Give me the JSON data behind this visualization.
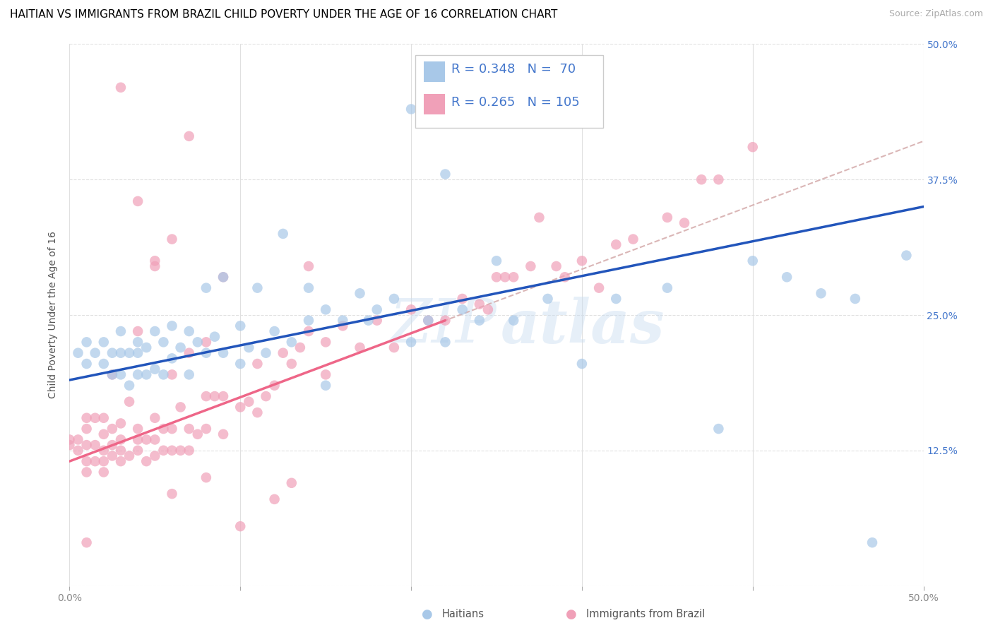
{
  "title": "HAITIAN VS IMMIGRANTS FROM BRAZIL CHILD POVERTY UNDER THE AGE OF 16 CORRELATION CHART",
  "source": "Source: ZipAtlas.com",
  "ylabel": "Child Poverty Under the Age of 16",
  "xlim": [
    0.0,
    0.5
  ],
  "ylim": [
    0.0,
    0.5
  ],
  "yticks": [
    0.0,
    0.125,
    0.25,
    0.375,
    0.5
  ],
  "xtick_positions": [
    0.0,
    0.1,
    0.2,
    0.3,
    0.4,
    0.5
  ],
  "color_blue": "#A8C8E8",
  "color_pink": "#F0A0B8",
  "color_blue_line": "#2255BB",
  "color_pink_line": "#EE6688",
  "color_dashed_line": "#D4AAAA",
  "color_right_ticks": "#4477CC",
  "color_grid": "#E0E0E0",
  "watermark": "ZIPatlas",
  "blue_scatter_x": [
    0.005,
    0.01,
    0.01,
    0.015,
    0.02,
    0.02,
    0.025,
    0.025,
    0.03,
    0.03,
    0.03,
    0.035,
    0.035,
    0.04,
    0.04,
    0.04,
    0.045,
    0.045,
    0.05,
    0.05,
    0.055,
    0.055,
    0.06,
    0.06,
    0.065,
    0.07,
    0.07,
    0.075,
    0.08,
    0.08,
    0.085,
    0.09,
    0.09,
    0.1,
    0.1,
    0.105,
    0.11,
    0.115,
    0.12,
    0.125,
    0.13,
    0.14,
    0.14,
    0.15,
    0.15,
    0.16,
    0.17,
    0.175,
    0.18,
    0.19,
    0.2,
    0.21,
    0.22,
    0.23,
    0.24,
    0.25,
    0.26,
    0.28,
    0.3,
    0.32,
    0.35,
    0.38,
    0.4,
    0.42,
    0.44,
    0.46,
    0.47,
    0.49,
    0.2,
    0.22
  ],
  "blue_scatter_y": [
    0.215,
    0.205,
    0.225,
    0.215,
    0.205,
    0.225,
    0.195,
    0.215,
    0.195,
    0.215,
    0.235,
    0.185,
    0.215,
    0.195,
    0.215,
    0.225,
    0.195,
    0.22,
    0.2,
    0.235,
    0.195,
    0.225,
    0.21,
    0.24,
    0.22,
    0.195,
    0.235,
    0.225,
    0.215,
    0.275,
    0.23,
    0.215,
    0.285,
    0.205,
    0.24,
    0.22,
    0.275,
    0.215,
    0.235,
    0.325,
    0.225,
    0.245,
    0.275,
    0.185,
    0.255,
    0.245,
    0.27,
    0.245,
    0.255,
    0.265,
    0.225,
    0.245,
    0.225,
    0.255,
    0.245,
    0.3,
    0.245,
    0.265,
    0.205,
    0.265,
    0.275,
    0.145,
    0.3,
    0.285,
    0.27,
    0.265,
    0.04,
    0.305,
    0.44,
    0.38
  ],
  "pink_scatter_x": [
    0.0,
    0.0,
    0.005,
    0.005,
    0.01,
    0.01,
    0.01,
    0.01,
    0.01,
    0.015,
    0.015,
    0.015,
    0.02,
    0.02,
    0.02,
    0.02,
    0.02,
    0.025,
    0.025,
    0.025,
    0.025,
    0.03,
    0.03,
    0.03,
    0.03,
    0.035,
    0.035,
    0.04,
    0.04,
    0.04,
    0.04,
    0.045,
    0.045,
    0.05,
    0.05,
    0.05,
    0.055,
    0.055,
    0.06,
    0.06,
    0.06,
    0.065,
    0.065,
    0.07,
    0.07,
    0.07,
    0.075,
    0.08,
    0.08,
    0.085,
    0.09,
    0.09,
    0.1,
    0.105,
    0.11,
    0.11,
    0.115,
    0.12,
    0.125,
    0.13,
    0.135,
    0.14,
    0.15,
    0.15,
    0.16,
    0.17,
    0.18,
    0.19,
    0.2,
    0.21,
    0.22,
    0.23,
    0.24,
    0.245,
    0.25,
    0.255,
    0.26,
    0.27,
    0.275,
    0.285,
    0.29,
    0.3,
    0.31,
    0.32,
    0.33,
    0.35,
    0.36,
    0.37,
    0.38,
    0.4,
    0.06,
    0.07,
    0.08,
    0.09,
    0.1,
    0.12,
    0.13,
    0.14,
    0.05,
    0.03,
    0.04,
    0.05,
    0.06,
    0.08,
    0.01
  ],
  "pink_scatter_y": [
    0.13,
    0.135,
    0.125,
    0.135,
    0.105,
    0.115,
    0.13,
    0.145,
    0.155,
    0.115,
    0.13,
    0.155,
    0.105,
    0.115,
    0.125,
    0.14,
    0.155,
    0.12,
    0.13,
    0.145,
    0.195,
    0.115,
    0.125,
    0.135,
    0.15,
    0.12,
    0.17,
    0.125,
    0.135,
    0.145,
    0.235,
    0.115,
    0.135,
    0.12,
    0.135,
    0.155,
    0.125,
    0.145,
    0.125,
    0.145,
    0.195,
    0.125,
    0.165,
    0.125,
    0.145,
    0.215,
    0.14,
    0.145,
    0.175,
    0.175,
    0.14,
    0.175,
    0.165,
    0.17,
    0.16,
    0.205,
    0.175,
    0.185,
    0.215,
    0.205,
    0.22,
    0.235,
    0.225,
    0.195,
    0.24,
    0.22,
    0.245,
    0.22,
    0.255,
    0.245,
    0.245,
    0.265,
    0.26,
    0.255,
    0.285,
    0.285,
    0.285,
    0.295,
    0.34,
    0.295,
    0.285,
    0.3,
    0.275,
    0.315,
    0.32,
    0.34,
    0.335,
    0.375,
    0.375,
    0.405,
    0.32,
    0.415,
    0.225,
    0.285,
    0.055,
    0.08,
    0.095,
    0.295,
    0.295,
    0.46,
    0.355,
    0.3,
    0.085,
    0.1,
    0.04
  ],
  "title_fontsize": 11,
  "source_fontsize": 9,
  "ylabel_fontsize": 10,
  "tick_fontsize": 10,
  "legend_fontsize": 13,
  "background_color": "#FFFFFF"
}
